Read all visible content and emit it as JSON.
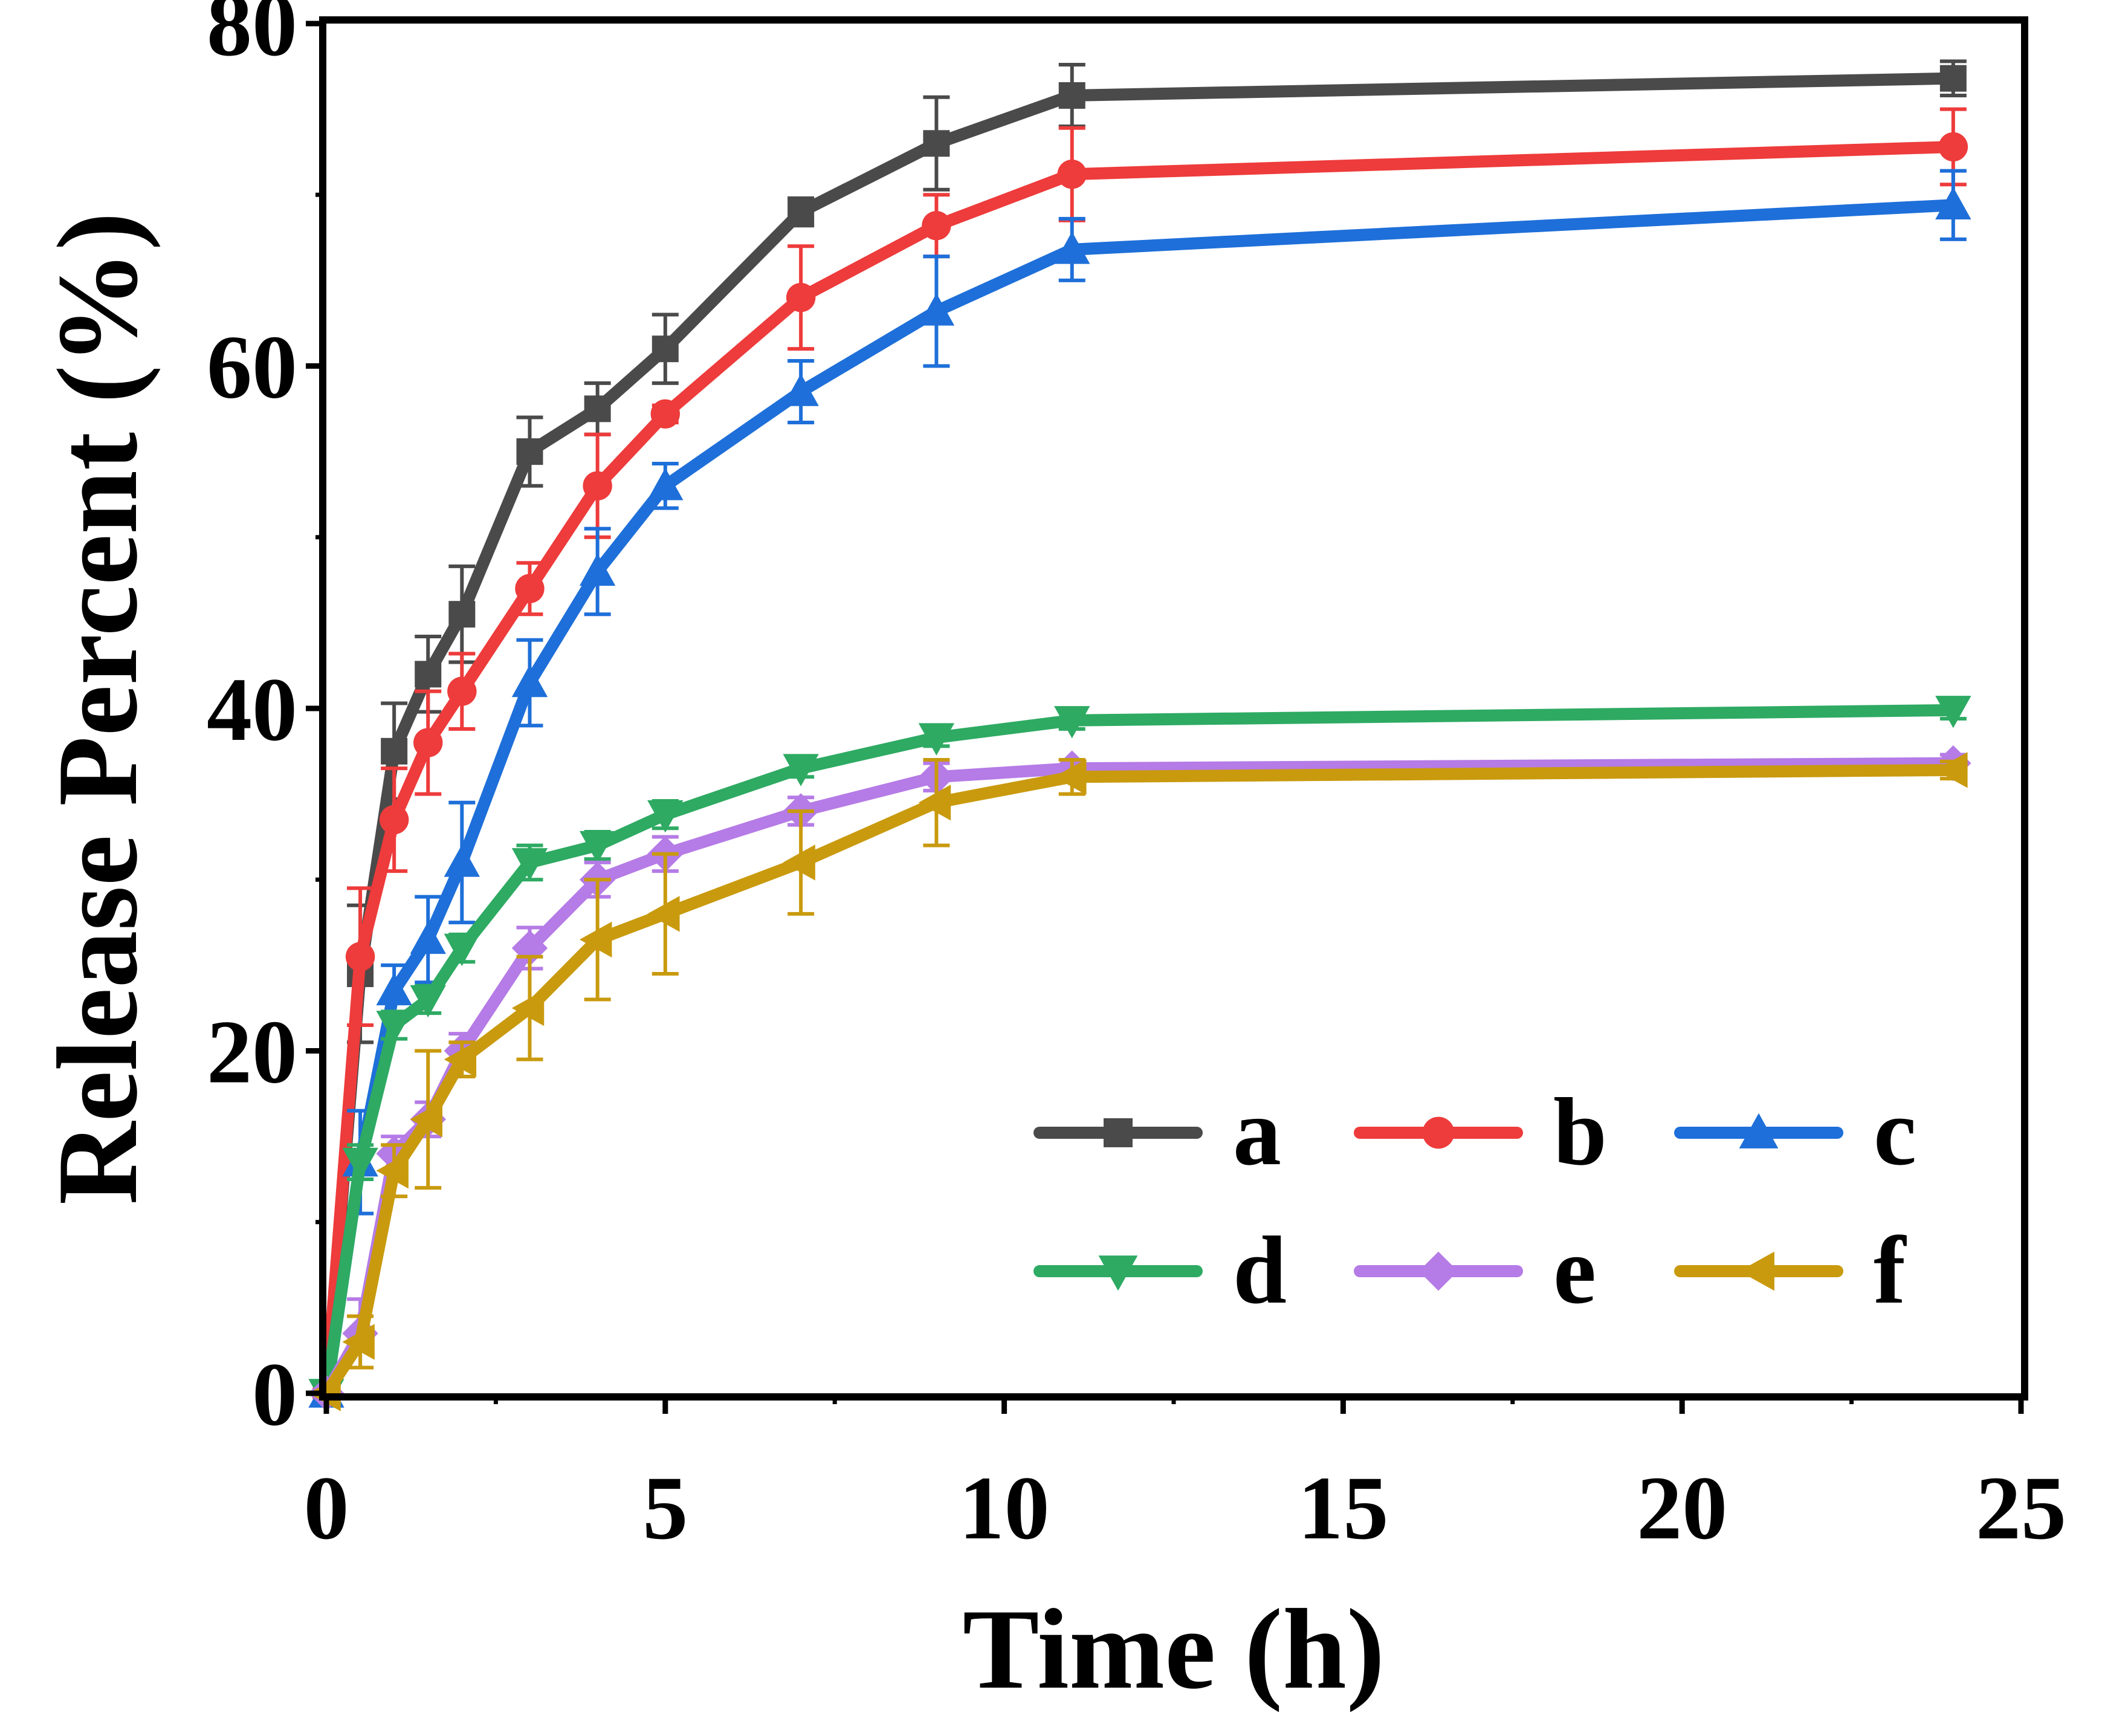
{
  "chart_data": {
    "type": "line",
    "title": "",
    "xlabel": "Time (h)",
    "ylabel": "Release Percent (%)",
    "xlim": [
      0,
      25
    ],
    "ylim": [
      0,
      80
    ],
    "xticks": [
      0,
      5,
      10,
      15,
      20,
      25
    ],
    "yticks": [
      0,
      20,
      40,
      60,
      80
    ],
    "grid": false,
    "legend_position": "bottom-right",
    "x": [
      0,
      0.5,
      1,
      1.5,
      2,
      3,
      4,
      5,
      7,
      9,
      11,
      24
    ],
    "series": [
      {
        "name": "a",
        "color": "#4a4a4a",
        "marker": "square",
        "values": [
          0,
          24.5,
          37.5,
          42,
          45.5,
          55,
          57.5,
          61,
          69,
          73,
          75.8,
          76.8
        ],
        "errors": [
          0,
          4,
          2.8,
          2.2,
          2.8,
          2,
          1.5,
          2,
          0.8,
          2.7,
          1.8,
          1.0
        ]
      },
      {
        "name": "b",
        "color": "#ee3b3b",
        "marker": "circle",
        "values": [
          0,
          25.5,
          33.5,
          38,
          41,
          47,
          53,
          57.2,
          64,
          68.2,
          71.2,
          72.8
        ],
        "errors": [
          0,
          4,
          3,
          3,
          2.2,
          1.5,
          3,
          0.5,
          3,
          1.8,
          2.7,
          2.2
        ]
      },
      {
        "name": "c",
        "color": "#1e6fd9",
        "marker": "triangle-up",
        "values": [
          0,
          13.5,
          23.5,
          26.5,
          31,
          41.5,
          48,
          53,
          58.5,
          63.2,
          66.8,
          69.4
        ],
        "errors": [
          0,
          3,
          1.5,
          2.5,
          3.5,
          2.5,
          2.5,
          1.3,
          1.8,
          3.2,
          1.8,
          2.0
        ]
      },
      {
        "name": "d",
        "color": "#2eaa63",
        "marker": "triangle-down",
        "values": [
          0,
          13.5,
          21.5,
          23,
          26,
          31,
          32,
          33.8,
          36.5,
          38.3,
          39.3,
          39.9
        ],
        "errors": [
          0,
          1,
          0.8,
          0.8,
          0.8,
          1,
          0.8,
          0.8,
          0.5,
          0.5,
          0.5,
          0.5
        ]
      },
      {
        "name": "e",
        "color": "#b57be6",
        "marker": "diamond",
        "values": [
          0,
          3.5,
          14,
          16,
          20,
          26,
          30,
          31.5,
          34,
          36,
          36.5,
          36.8
        ],
        "errors": [
          0,
          2,
          1,
          1,
          1,
          1.2,
          1,
          1,
          0.8,
          0.8,
          0.5,
          0.5
        ]
      },
      {
        "name": "f",
        "color": "#c99a0e",
        "marker": "triangle-left",
        "values": [
          0,
          3,
          13,
          16,
          19.5,
          22.5,
          26.5,
          28,
          31,
          34.5,
          36,
          36.4
        ],
        "errors": [
          0,
          1.5,
          1.5,
          4,
          1,
          3,
          3.5,
          3.5,
          3,
          2.5,
          1,
          0.5
        ]
      }
    ]
  }
}
